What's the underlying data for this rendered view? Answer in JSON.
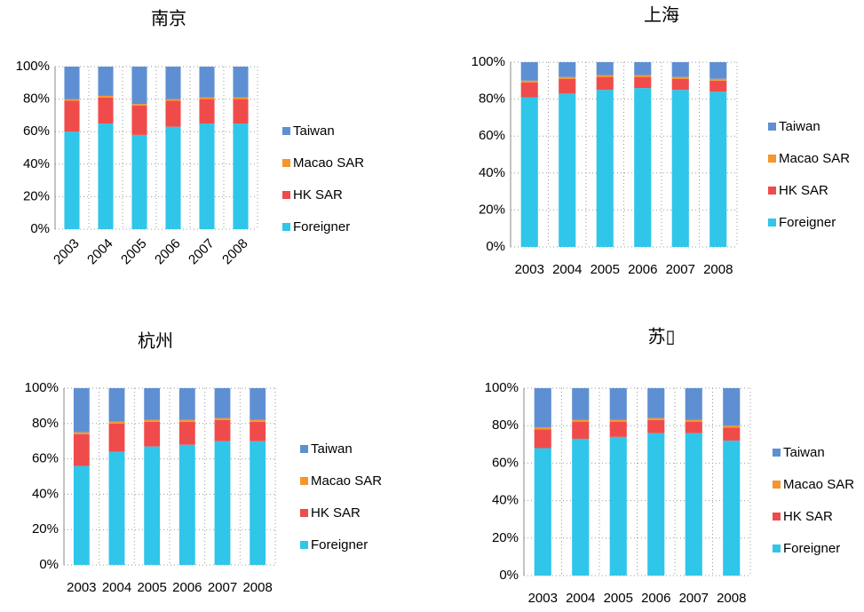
{
  "chart_data": [
    {
      "type": "bar",
      "stacked": true,
      "title": "南京",
      "categories": [
        "2003",
        "2004",
        "2005",
        "2006",
        "2007",
        "2008"
      ],
      "series": [
        {
          "name": "Foreigner",
          "color": "#2fc6ea",
          "values": [
            60,
            65,
            58,
            63,
            65,
            65
          ]
        },
        {
          "name": "HK SAR",
          "color": "#f04b4b",
          "values": [
            19,
            16,
            18,
            16,
            15,
            15
          ]
        },
        {
          "name": "Macao SAR",
          "color": "#f5962a",
          "values": [
            1,
            1,
            1,
            1,
            1,
            1
          ]
        },
        {
          "name": "Taiwan",
          "color": "#5f8fd3",
          "values": [
            20,
            18,
            23,
            20,
            19,
            19
          ]
        }
      ],
      "ylim": [
        0,
        100
      ],
      "yticks": [
        {
          "value": 0,
          "label": "0%"
        },
        {
          "value": 20,
          "label": "20%"
        },
        {
          "value": 40,
          "label": "40%"
        },
        {
          "value": 60,
          "label": "60%"
        },
        {
          "value": 80,
          "label": "80%"
        },
        {
          "value": 100,
          "label": "100%"
        }
      ],
      "grid": true,
      "legend": "right"
    },
    {
      "type": "bar",
      "stacked": true,
      "title": "上海",
      "categories": [
        "2003",
        "2004",
        "2005",
        "2006",
        "2007",
        "2008"
      ],
      "series": [
        {
          "name": "Foreigner",
          "color": "#2fc6ea",
          "values": [
            81,
            83,
            85,
            86,
            85,
            84
          ]
        },
        {
          "name": "HK SAR",
          "color": "#f04b4b",
          "values": [
            8,
            8,
            7,
            6,
            6,
            6
          ]
        },
        {
          "name": "Macao SAR",
          "color": "#f5962a",
          "values": [
            1,
            1,
            1,
            1,
            1,
            1
          ]
        },
        {
          "name": "Taiwan",
          "color": "#5f8fd3",
          "values": [
            10,
            8,
            7,
            7,
            8,
            9
          ]
        }
      ],
      "ylim": [
        0,
        100
      ],
      "yticks": [
        {
          "value": 0,
          "label": "0%"
        },
        {
          "value": 20,
          "label": "20%"
        },
        {
          "value": 40,
          "label": "40%"
        },
        {
          "value": 60,
          "label": "60%"
        },
        {
          "value": 80,
          "label": "80%"
        },
        {
          "value": 100,
          "label": "100%"
        }
      ],
      "grid": true,
      "legend": "right"
    },
    {
      "type": "bar",
      "stacked": true,
      "title": "杭州",
      "categories": [
        "2003",
        "2004",
        "2005",
        "2006",
        "2007",
        "2008"
      ],
      "series": [
        {
          "name": "Foreigner",
          "color": "#2fc6ea",
          "values": [
            56,
            64,
            67,
            68,
            70,
            70
          ]
        },
        {
          "name": "HK SAR",
          "color": "#f04b4b",
          "values": [
            18,
            16,
            14,
            13,
            12,
            11
          ]
        },
        {
          "name": "Macao SAR",
          "color": "#f5962a",
          "values": [
            1,
            1,
            1,
            1,
            1,
            1
          ]
        },
        {
          "name": "Taiwan",
          "color": "#5f8fd3",
          "values": [
            25,
            19,
            18,
            18,
            17,
            18
          ]
        }
      ],
      "ylim": [
        0,
        100
      ],
      "yticks": [
        {
          "value": 0,
          "label": "0%"
        },
        {
          "value": 20,
          "label": "20%"
        },
        {
          "value": 40,
          "label": "40%"
        },
        {
          "value": 60,
          "label": "60%"
        },
        {
          "value": 80,
          "label": "80%"
        },
        {
          "value": 100,
          "label": "100%"
        }
      ],
      "grid": true,
      "legend": "right"
    },
    {
      "type": "bar",
      "stacked": true,
      "title": "苏▯",
      "categories": [
        "2003",
        "2004",
        "2005",
        "2006",
        "2007",
        "2008"
      ],
      "series": [
        {
          "name": "Foreigner",
          "color": "#2fc6ea",
          "values": [
            68,
            73,
            74,
            76,
            76,
            72
          ]
        },
        {
          "name": "HK SAR",
          "color": "#f04b4b",
          "values": [
            10,
            9,
            8,
            7,
            6,
            7
          ]
        },
        {
          "name": "Macao SAR",
          "color": "#f5962a",
          "values": [
            1,
            1,
            1,
            1,
            1,
            1
          ]
        },
        {
          "name": "Taiwan",
          "color": "#5f8fd3",
          "values": [
            21,
            17,
            17,
            16,
            17,
            20
          ]
        }
      ],
      "ylim": [
        0,
        100
      ],
      "yticks": [
        {
          "value": 0,
          "label": "0%"
        },
        {
          "value": 20,
          "label": "20%"
        },
        {
          "value": 40,
          "label": "40%"
        },
        {
          "value": 60,
          "label": "60%"
        },
        {
          "value": 80,
          "label": "80%"
        },
        {
          "value": 100,
          "label": "100%"
        }
      ],
      "grid": true,
      "legend": "right"
    }
  ]
}
